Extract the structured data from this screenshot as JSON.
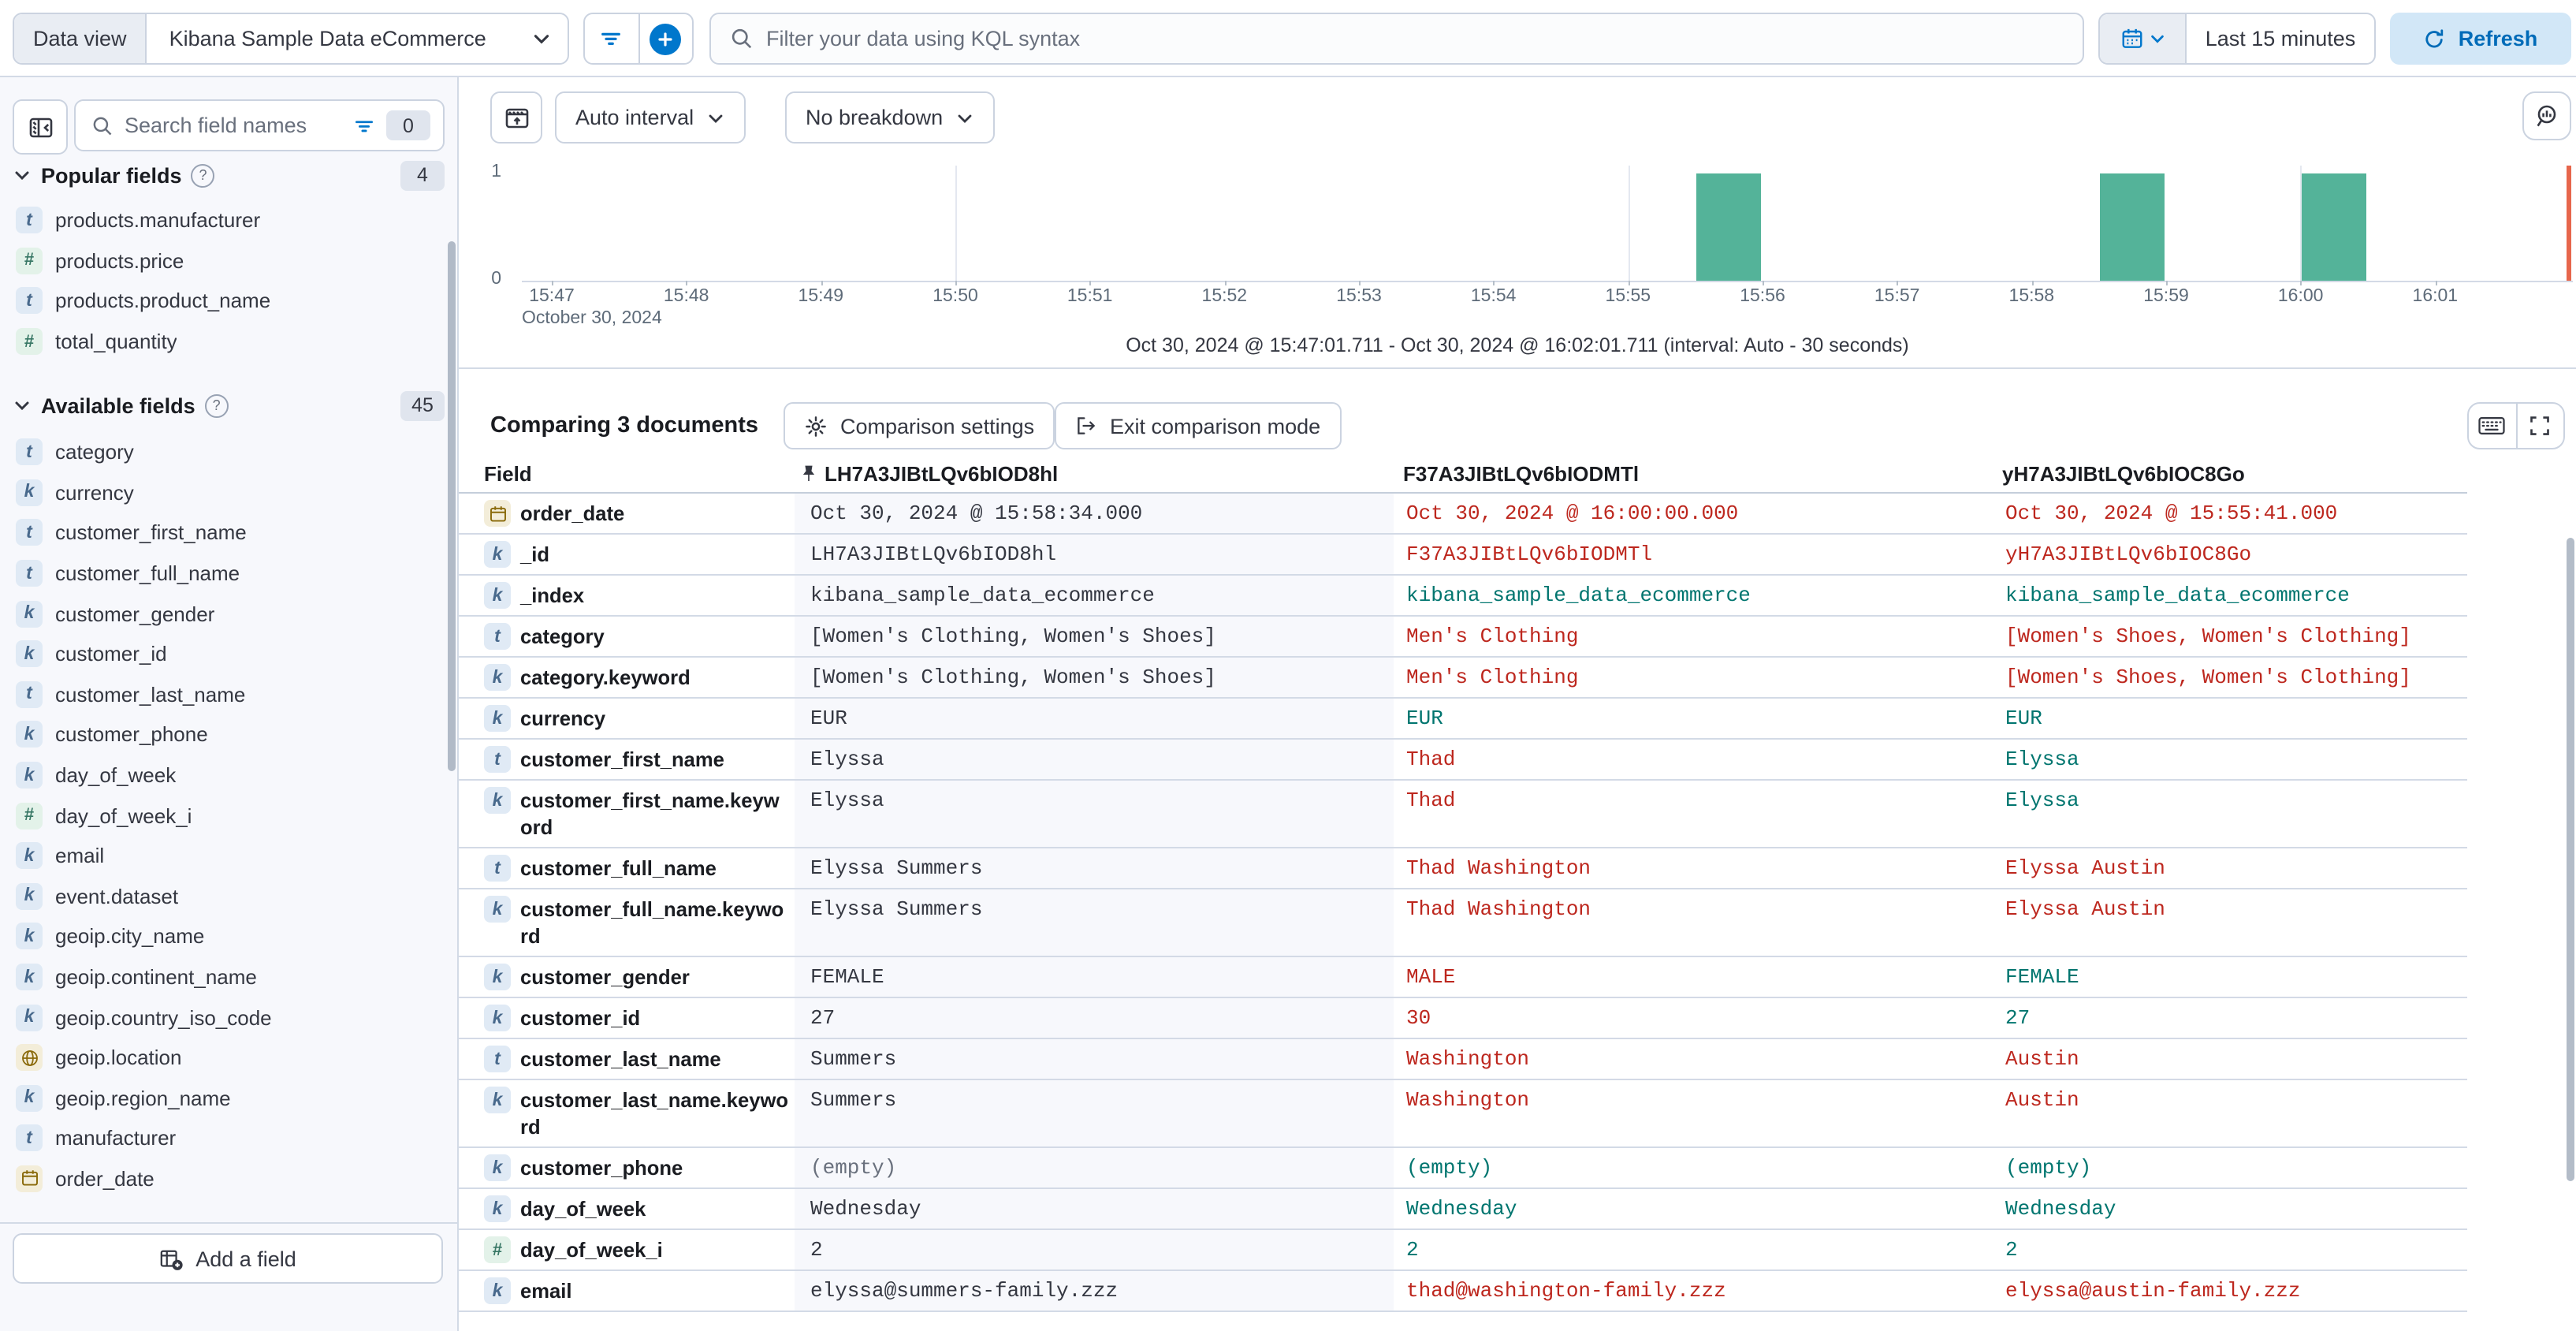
{
  "topbar": {
    "data_view_label": "Data view",
    "data_view_value": "Kibana Sample Data eCommerce",
    "kql_placeholder": "Filter your data using KQL syntax",
    "time_range": "Last 15 minutes",
    "refresh_label": "Refresh"
  },
  "sidebar": {
    "search_placeholder": "Search field names",
    "filter_count": "0",
    "popular": {
      "title": "Popular fields",
      "count": "4",
      "items": [
        {
          "type": "text",
          "name": "products.manufacturer"
        },
        {
          "type": "number",
          "name": "products.price"
        },
        {
          "type": "text",
          "name": "products.product_name"
        },
        {
          "type": "number",
          "name": "total_quantity"
        }
      ]
    },
    "available": {
      "title": "Available fields",
      "count": "45",
      "items": [
        {
          "type": "text",
          "name": "category"
        },
        {
          "type": "keyword",
          "name": "currency"
        },
        {
          "type": "text",
          "name": "customer_first_name"
        },
        {
          "type": "text",
          "name": "customer_full_name"
        },
        {
          "type": "keyword",
          "name": "customer_gender"
        },
        {
          "type": "keyword",
          "name": "customer_id"
        },
        {
          "type": "text",
          "name": "customer_last_name"
        },
        {
          "type": "keyword",
          "name": "customer_phone"
        },
        {
          "type": "keyword",
          "name": "day_of_week"
        },
        {
          "type": "number",
          "name": "day_of_week_i"
        },
        {
          "type": "keyword",
          "name": "email"
        },
        {
          "type": "keyword",
          "name": "event.dataset"
        },
        {
          "type": "keyword",
          "name": "geoip.city_name"
        },
        {
          "type": "keyword",
          "name": "geoip.continent_name"
        },
        {
          "type": "keyword",
          "name": "geoip.country_iso_code"
        },
        {
          "type": "geo_point",
          "name": "geoip.location"
        },
        {
          "type": "keyword",
          "name": "geoip.region_name"
        },
        {
          "type": "text",
          "name": "manufacturer"
        },
        {
          "type": "date",
          "name": "order_date"
        }
      ]
    },
    "add_field_label": "Add a field"
  },
  "chart_toolbar": {
    "interval_label": "Auto interval",
    "breakdown_label": "No breakdown"
  },
  "chart_data": {
    "type": "bar",
    "x_ticks": [
      "15:47",
      "15:48",
      "15:49",
      "15:50",
      "15:51",
      "15:52",
      "15:53",
      "15:54",
      "15:55",
      "15:56",
      "15:57",
      "15:58",
      "15:59",
      "16:00",
      "16:01"
    ],
    "duration_minutes": 15,
    "date_label": "October 30, 2024",
    "y_ticks": [
      "1",
      "0"
    ],
    "ylim": [
      0,
      1
    ],
    "bars": [
      {
        "time": "15:55:30",
        "count": 1
      },
      {
        "time": "15:58:30",
        "count": 1
      },
      {
        "time": "16:00:00",
        "count": 1
      }
    ],
    "gridlines_at": [
      "15:50",
      "15:55",
      "16:00"
    ],
    "interval": "30 seconds",
    "bar_color": "#54B399",
    "end_marker_color": "#E7664C",
    "range_label": "Oct 30, 2024 @ 15:47:01.711 - Oct 30, 2024 @ 16:02:01.711 (interval: Auto - 30 seconds)"
  },
  "comparison": {
    "title": "Comparing 3 documents",
    "settings_label": "Comparison settings",
    "exit_label": "Exit comparison mode"
  },
  "table": {
    "field_header": "Field",
    "doc_headers": [
      "LH7A3JIBtLQv6bIOD8hl",
      "F37A3JIBtLQv6bIODMTl",
      "yH7A3JIBtLQv6bIOC8Go"
    ],
    "rows": [
      {
        "type": "date",
        "field": "order_date",
        "v1": "Oct 30, 2024 @ 15:58:34.000",
        "v2": "Oct 30, 2024 @ 16:00:00.000",
        "v3": "Oct 30, 2024 @ 15:55:41.000",
        "c2": "diff",
        "c3": "diff"
      },
      {
        "type": "keyword",
        "field": "_id",
        "v1": "LH7A3JIBtLQv6bIOD8hl",
        "v2": "F37A3JIBtLQv6bIODMTl",
        "v3": "yH7A3JIBtLQv6bIOC8Go",
        "c2": "diff",
        "c3": "diff"
      },
      {
        "type": "keyword",
        "field": "_index",
        "v1": "kibana_sample_data_ecommerce",
        "v2": "kibana_sample_data_ecommerce",
        "v3": "kibana_sample_data_ecommerce",
        "c2": "same",
        "c3": "same"
      },
      {
        "type": "text",
        "field": "category",
        "v1": "[Women's Clothing, Women's Shoes]",
        "v2": "Men's Clothing",
        "v3": "[Women's Shoes, Women's Clothing]",
        "c2": "diff",
        "c3": "diff"
      },
      {
        "type": "keyword",
        "field": "category.keyword",
        "v1": "[Women's Clothing, Women's Shoes]",
        "v2": "Men's Clothing",
        "v3": "[Women's Shoes, Women's Clothing]",
        "c2": "diff",
        "c3": "diff"
      },
      {
        "type": "keyword",
        "field": "currency",
        "v1": "EUR",
        "v2": "EUR",
        "v3": "EUR",
        "c2": "same",
        "c3": "same"
      },
      {
        "type": "text",
        "field": "customer_first_name",
        "v1": "Elyssa",
        "v2": "Thad",
        "v3": "Elyssa",
        "c2": "diff",
        "c3": "same"
      },
      {
        "type": "keyword",
        "field": "customer_first_name.keyword",
        "tall": true,
        "v1": "Elyssa",
        "v2": "Thad",
        "v3": "Elyssa",
        "c2": "diff",
        "c3": "same"
      },
      {
        "type": "text",
        "field": "customer_full_name",
        "v1": "Elyssa Summers",
        "v2": "Thad Washington",
        "v3": "Elyssa Austin",
        "c2": "diff",
        "c3": "diff"
      },
      {
        "type": "keyword",
        "field": "customer_full_name.keyword",
        "tall": true,
        "v1": "Elyssa Summers",
        "v2": "Thad Washington",
        "v3": "Elyssa Austin",
        "c2": "diff",
        "c3": "diff"
      },
      {
        "type": "keyword",
        "field": "customer_gender",
        "v1": "FEMALE",
        "v2": "MALE",
        "v3": "FEMALE",
        "c2": "diff",
        "c3": "same"
      },
      {
        "type": "keyword",
        "field": "customer_id",
        "v1": "27",
        "v2": "30",
        "v3": "27",
        "c2": "diff",
        "c3": "same"
      },
      {
        "type": "text",
        "field": "customer_last_name",
        "v1": "Summers",
        "v2": "Washington",
        "v3": "Austin",
        "c2": "diff",
        "c3": "diff"
      },
      {
        "type": "keyword",
        "field": "customer_last_name.keyword",
        "tall": true,
        "v1": "Summers",
        "v2": "Washington",
        "v3": "Austin",
        "c2": "diff",
        "c3": "diff"
      },
      {
        "type": "keyword",
        "field": "customer_phone",
        "empty1": true,
        "v1": "(empty)",
        "v2": "(empty)",
        "v3": "(empty)",
        "c2": "same",
        "c3": "same"
      },
      {
        "type": "keyword",
        "field": "day_of_week",
        "v1": "Wednesday",
        "v2": "Wednesday",
        "v3": "Wednesday",
        "c2": "same",
        "c3": "same"
      },
      {
        "type": "number",
        "field": "day_of_week_i",
        "v1": "2",
        "v2": "2",
        "v3": "2",
        "c2": "same",
        "c3": "same"
      },
      {
        "type": "keyword",
        "field": "email",
        "v1": "elyssa@summers-family.zzz",
        "v2": "thad@washington-family.zzz",
        "v3": "elyssa@austin-family.zzz",
        "c2": "diff",
        "c3": "diff"
      }
    ]
  },
  "colors": {
    "primary": "#0077CC",
    "diff_text": "#BD271E",
    "match_text": "#00756F",
    "bar": "#54B399",
    "pinned_column_bg": "#F7F8FC"
  }
}
